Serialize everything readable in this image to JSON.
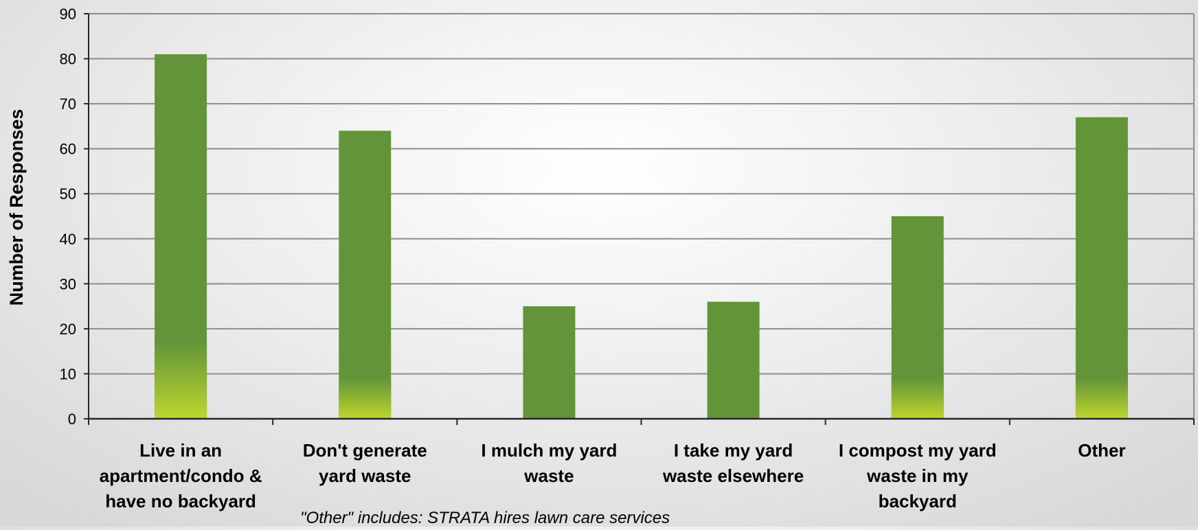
{
  "chart_data": {
    "type": "bar",
    "title": "",
    "xlabel": "",
    "ylabel": "Number of Responses",
    "ylim": [
      0,
      90
    ],
    "y_ticks": [
      0,
      10,
      20,
      30,
      40,
      50,
      60,
      70,
      80,
      90
    ],
    "grid": true,
    "legend": "none",
    "categories": [
      [
        "Live in an",
        "apartment/condo &",
        "have no backyard"
      ],
      [
        "Don't generate",
        "yard waste"
      ],
      [
        "I mulch my yard",
        "waste"
      ],
      [
        "I take my yard",
        "waste elsewhere"
      ],
      [
        "I compost my yard",
        "waste in my",
        "backyard"
      ],
      [
        "Other"
      ]
    ],
    "values": [
      81,
      64,
      25,
      26,
      45,
      67
    ],
    "colors": {
      "bar": "#63943a",
      "bar_base": "#bdd62e",
      "grid": "#8c8c8c",
      "axis": "#262626",
      "text": "#000000"
    }
  },
  "footnote": "\"Other\" includes: STRATA hires lawn care services"
}
